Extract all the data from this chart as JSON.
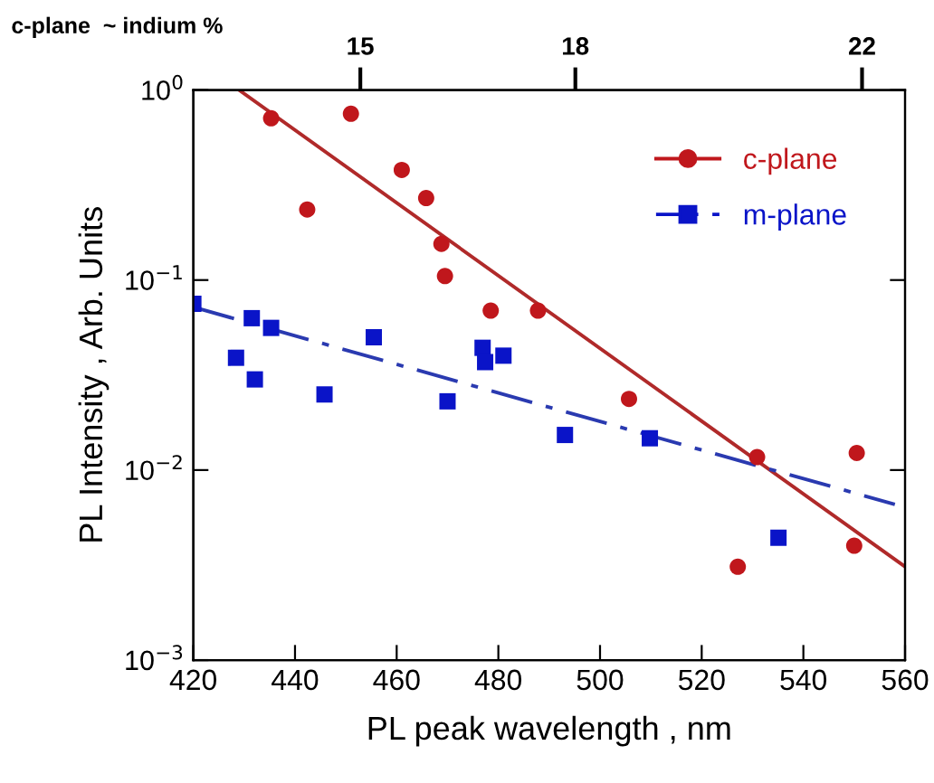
{
  "chart_data": {
    "type": "scatter",
    "xlabel": "PL peak wavelength , nm",
    "ylabel": "PL Intensity , Arb. Units",
    "x2label": "c-plane  ~ indium %",
    "log": "y",
    "grid": false,
    "legend": "top right",
    "xlim": [
      420,
      560
    ],
    "xticks": [
      420,
      440,
      460,
      480,
      500,
      520,
      540,
      560
    ],
    "x2lim": [
      12.67,
      22.6
    ],
    "x2ticks": [
      15,
      18,
      22
    ],
    "ylim": [
      0.001,
      1
    ],
    "yticks": [
      {
        "value": 0.001,
        "label": "10$^{−3}$"
      },
      {
        "value": 0.01,
        "label": "10$^{−2}$"
      },
      {
        "value": 0.1,
        "label": "10$^{−1}$"
      },
      {
        "value": 1,
        "label": "10$^{0}$"
      }
    ],
    "series": [
      {
        "name": "c-plane",
        "marker": "circle",
        "color": "#c0171c",
        "x": [
          435.3,
          442.4,
          451.0,
          461.0,
          465.8,
          468.8,
          469.5,
          478.5,
          487.8,
          505.7,
          527.1,
          530.9,
          550.0,
          550.5
        ],
        "values": [
          0.71,
          0.235,
          0.75,
          0.38,
          0.27,
          0.155,
          0.105,
          0.069,
          0.069,
          0.0237,
          0.0031,
          0.0117,
          0.004,
          0.0123
        ]
      },
      {
        "type": "line",
        "marker": "none",
        "line_style": "solid",
        "color": "#b02a2a",
        "x": [
          429,
          560
        ],
        "values": [
          1.0,
          0.0031
        ]
      },
      {
        "name": "m-plane",
        "marker": "square",
        "color": "#0a14c8",
        "x": [
          420.0,
          428.4,
          431.5,
          432.1,
          435.3,
          445.8,
          455.5,
          470.0,
          476.9,
          477.4,
          481.0,
          493.1,
          509.8,
          535.1
        ],
        "values": [
          0.075,
          0.039,
          0.063,
          0.03,
          0.056,
          0.025,
          0.05,
          0.023,
          0.044,
          0.037,
          0.04,
          0.0153,
          0.0147,
          0.0044
        ]
      },
      {
        "type": "line",
        "marker": "none",
        "line_style": "dashdot",
        "color": "#2a3ab0",
        "x": [
          420,
          558
        ],
        "values": [
          0.072,
          0.0066
        ]
      }
    ]
  }
}
